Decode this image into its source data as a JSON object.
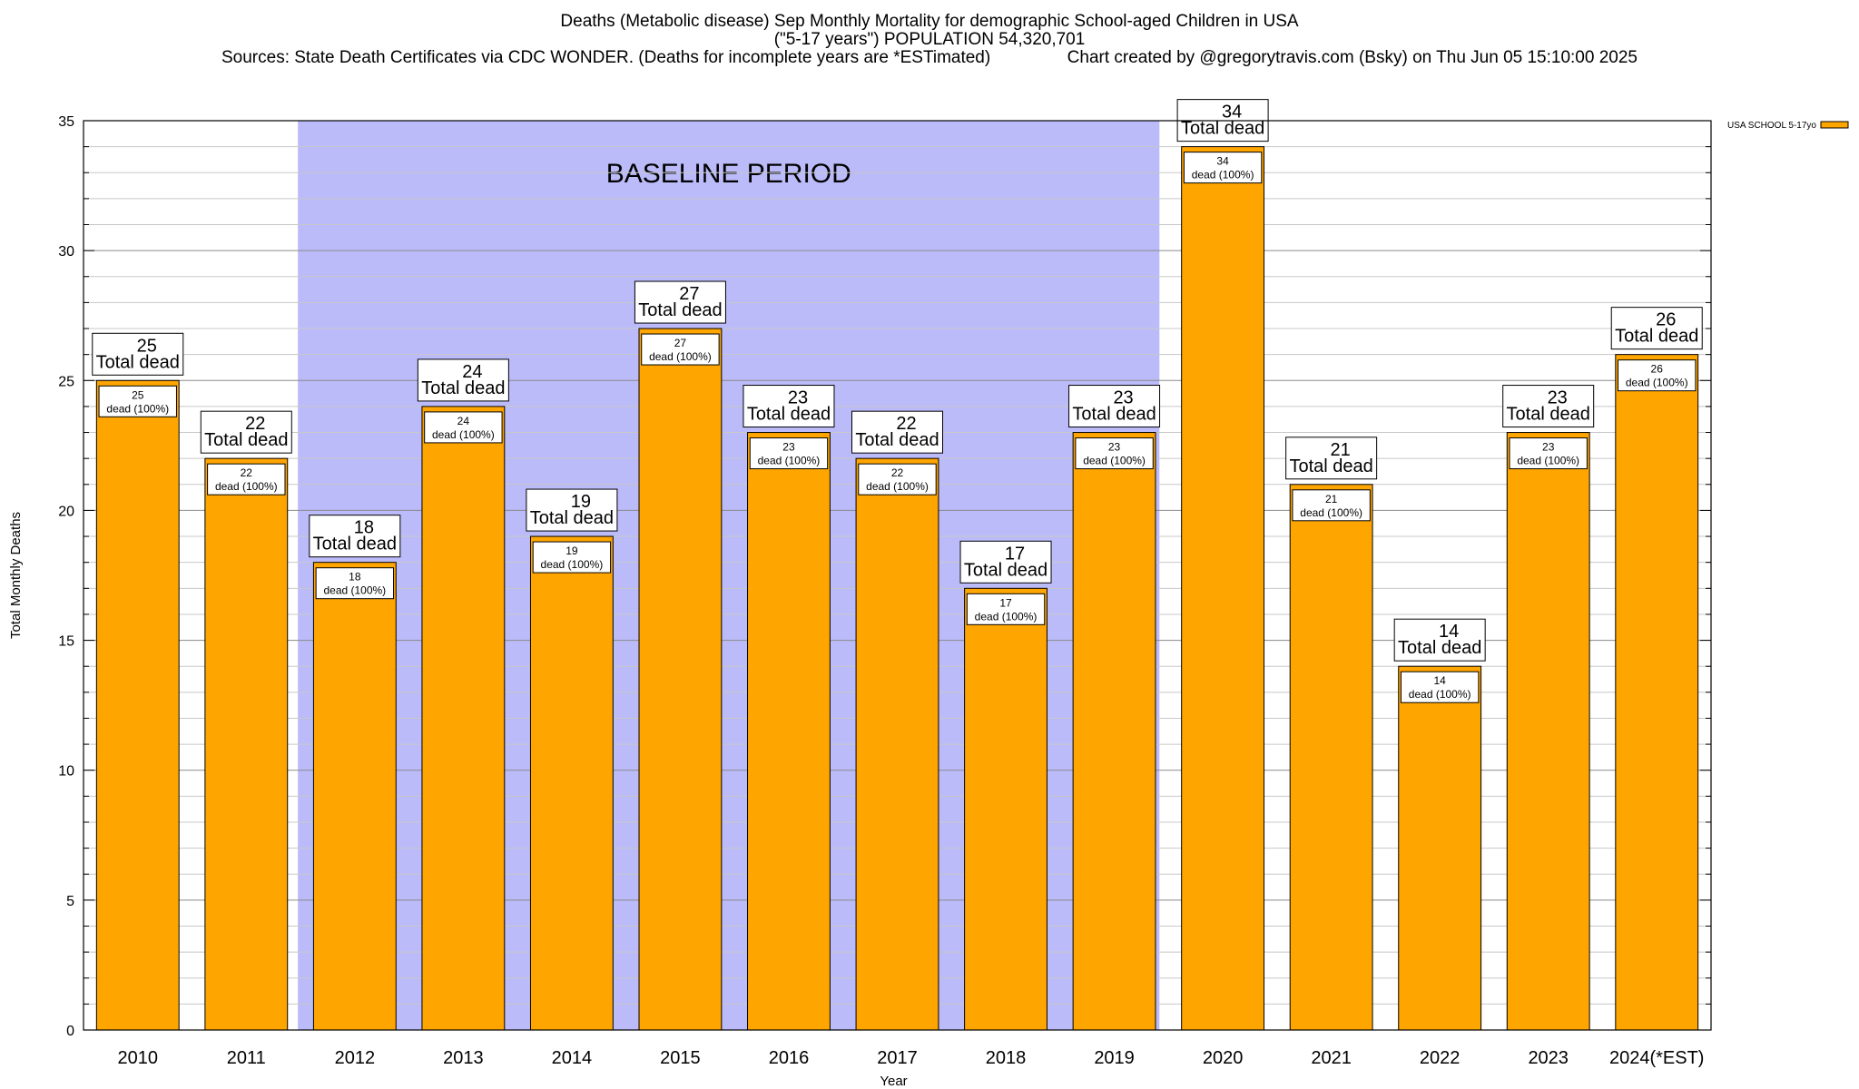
{
  "chart_data": {
    "type": "bar",
    "title": "Deaths (Metabolic disease) Sep Monthly Mortality for demographic School-aged Children in USA",
    "subtitle": "(\"5-17 years\") POPULATION 54,320,701",
    "sources": "Sources: State Death Certificates via CDC WONDER. (Deaths for incomplete years are *ESTimated)",
    "credit": "Chart created by @gregorytravis.com (Bsky) on Thu Jun 05 15:10:00 2025",
    "xlabel": "Year",
    "ylabel": "Total Monthly Deaths",
    "ylim": [
      0,
      35
    ],
    "yticks": [
      0,
      5,
      10,
      15,
      20,
      25,
      30,
      35
    ],
    "grid": true,
    "legend_placement": "top-right",
    "categories": [
      "2010",
      "2011",
      "2012",
      "2013",
      "2014",
      "2015",
      "2016",
      "2017",
      "2018",
      "2019",
      "2020",
      "2021",
      "2022",
      "2023",
      "2024(*EST)"
    ],
    "series": [
      {
        "name": "USA SCHOOL 5-17yo",
        "color": "#ffa500",
        "values": [
          25,
          22,
          18,
          24,
          19,
          27,
          23,
          22,
          17,
          23,
          34,
          21,
          14,
          23,
          26
        ]
      }
    ],
    "bar_label_suffix": "Total dead",
    "inner_label_suffix": "dead (100%)",
    "baseline_period": {
      "label": "BASELINE PERIOD",
      "start": "2012",
      "end": "2019",
      "color": "#bbbbfa"
    }
  }
}
